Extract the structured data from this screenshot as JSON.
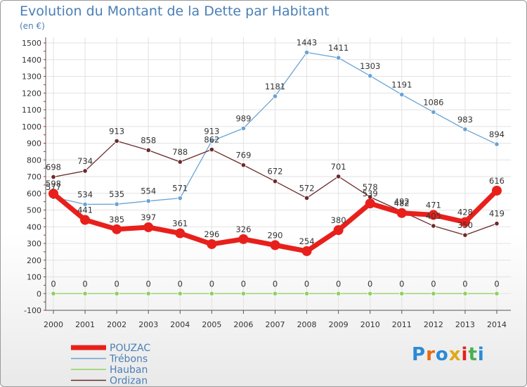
{
  "title": "Evolution du Montant de la Dette par Habitant",
  "subtitle": "(en €)",
  "logo": "Proxiti",
  "chart_data": {
    "type": "line",
    "title": "Evolution du Montant de la Dette par Habitant",
    "ylabel": "(en €)",
    "x": [
      "2000",
      "2001",
      "2002",
      "2003",
      "2004",
      "2005",
      "2006",
      "2007",
      "2008",
      "2009",
      "2010",
      "2011",
      "2012",
      "2013",
      "2014"
    ],
    "ylim": [
      -100,
      1500
    ],
    "yticks": [
      -100,
      0,
      100,
      200,
      300,
      400,
      500,
      600,
      700,
      800,
      900,
      1000,
      1100,
      1200,
      1300,
      1400,
      1500
    ],
    "grid": true,
    "legend": "bottom-left",
    "series": [
      {
        "name": "POUZAC",
        "color": "#e8201b",
        "values": [
          598,
          441,
          385,
          397,
          361,
          296,
          326,
          290,
          254,
          380,
          539,
          482,
          471,
          428,
          616
        ]
      },
      {
        "name": "Trébons",
        "color": "#6aa3d3",
        "values": [
          577,
          534,
          535,
          554,
          571,
          913,
          989,
          1181,
          1443,
          1411,
          1303,
          1191,
          1086,
          983,
          894
        ]
      },
      {
        "name": "Hauban",
        "color": "#8fd15f",
        "values": [
          0,
          0,
          0,
          0,
          0,
          0,
          0,
          0,
          0,
          0,
          0,
          0,
          0,
          0,
          0
        ]
      },
      {
        "name": "Ordizan",
        "color": "#6b2a2a",
        "values": [
          698,
          734,
          913,
          858,
          788,
          862,
          769,
          672,
          572,
          701,
          578,
          492,
          405,
          350,
          419
        ]
      }
    ]
  }
}
